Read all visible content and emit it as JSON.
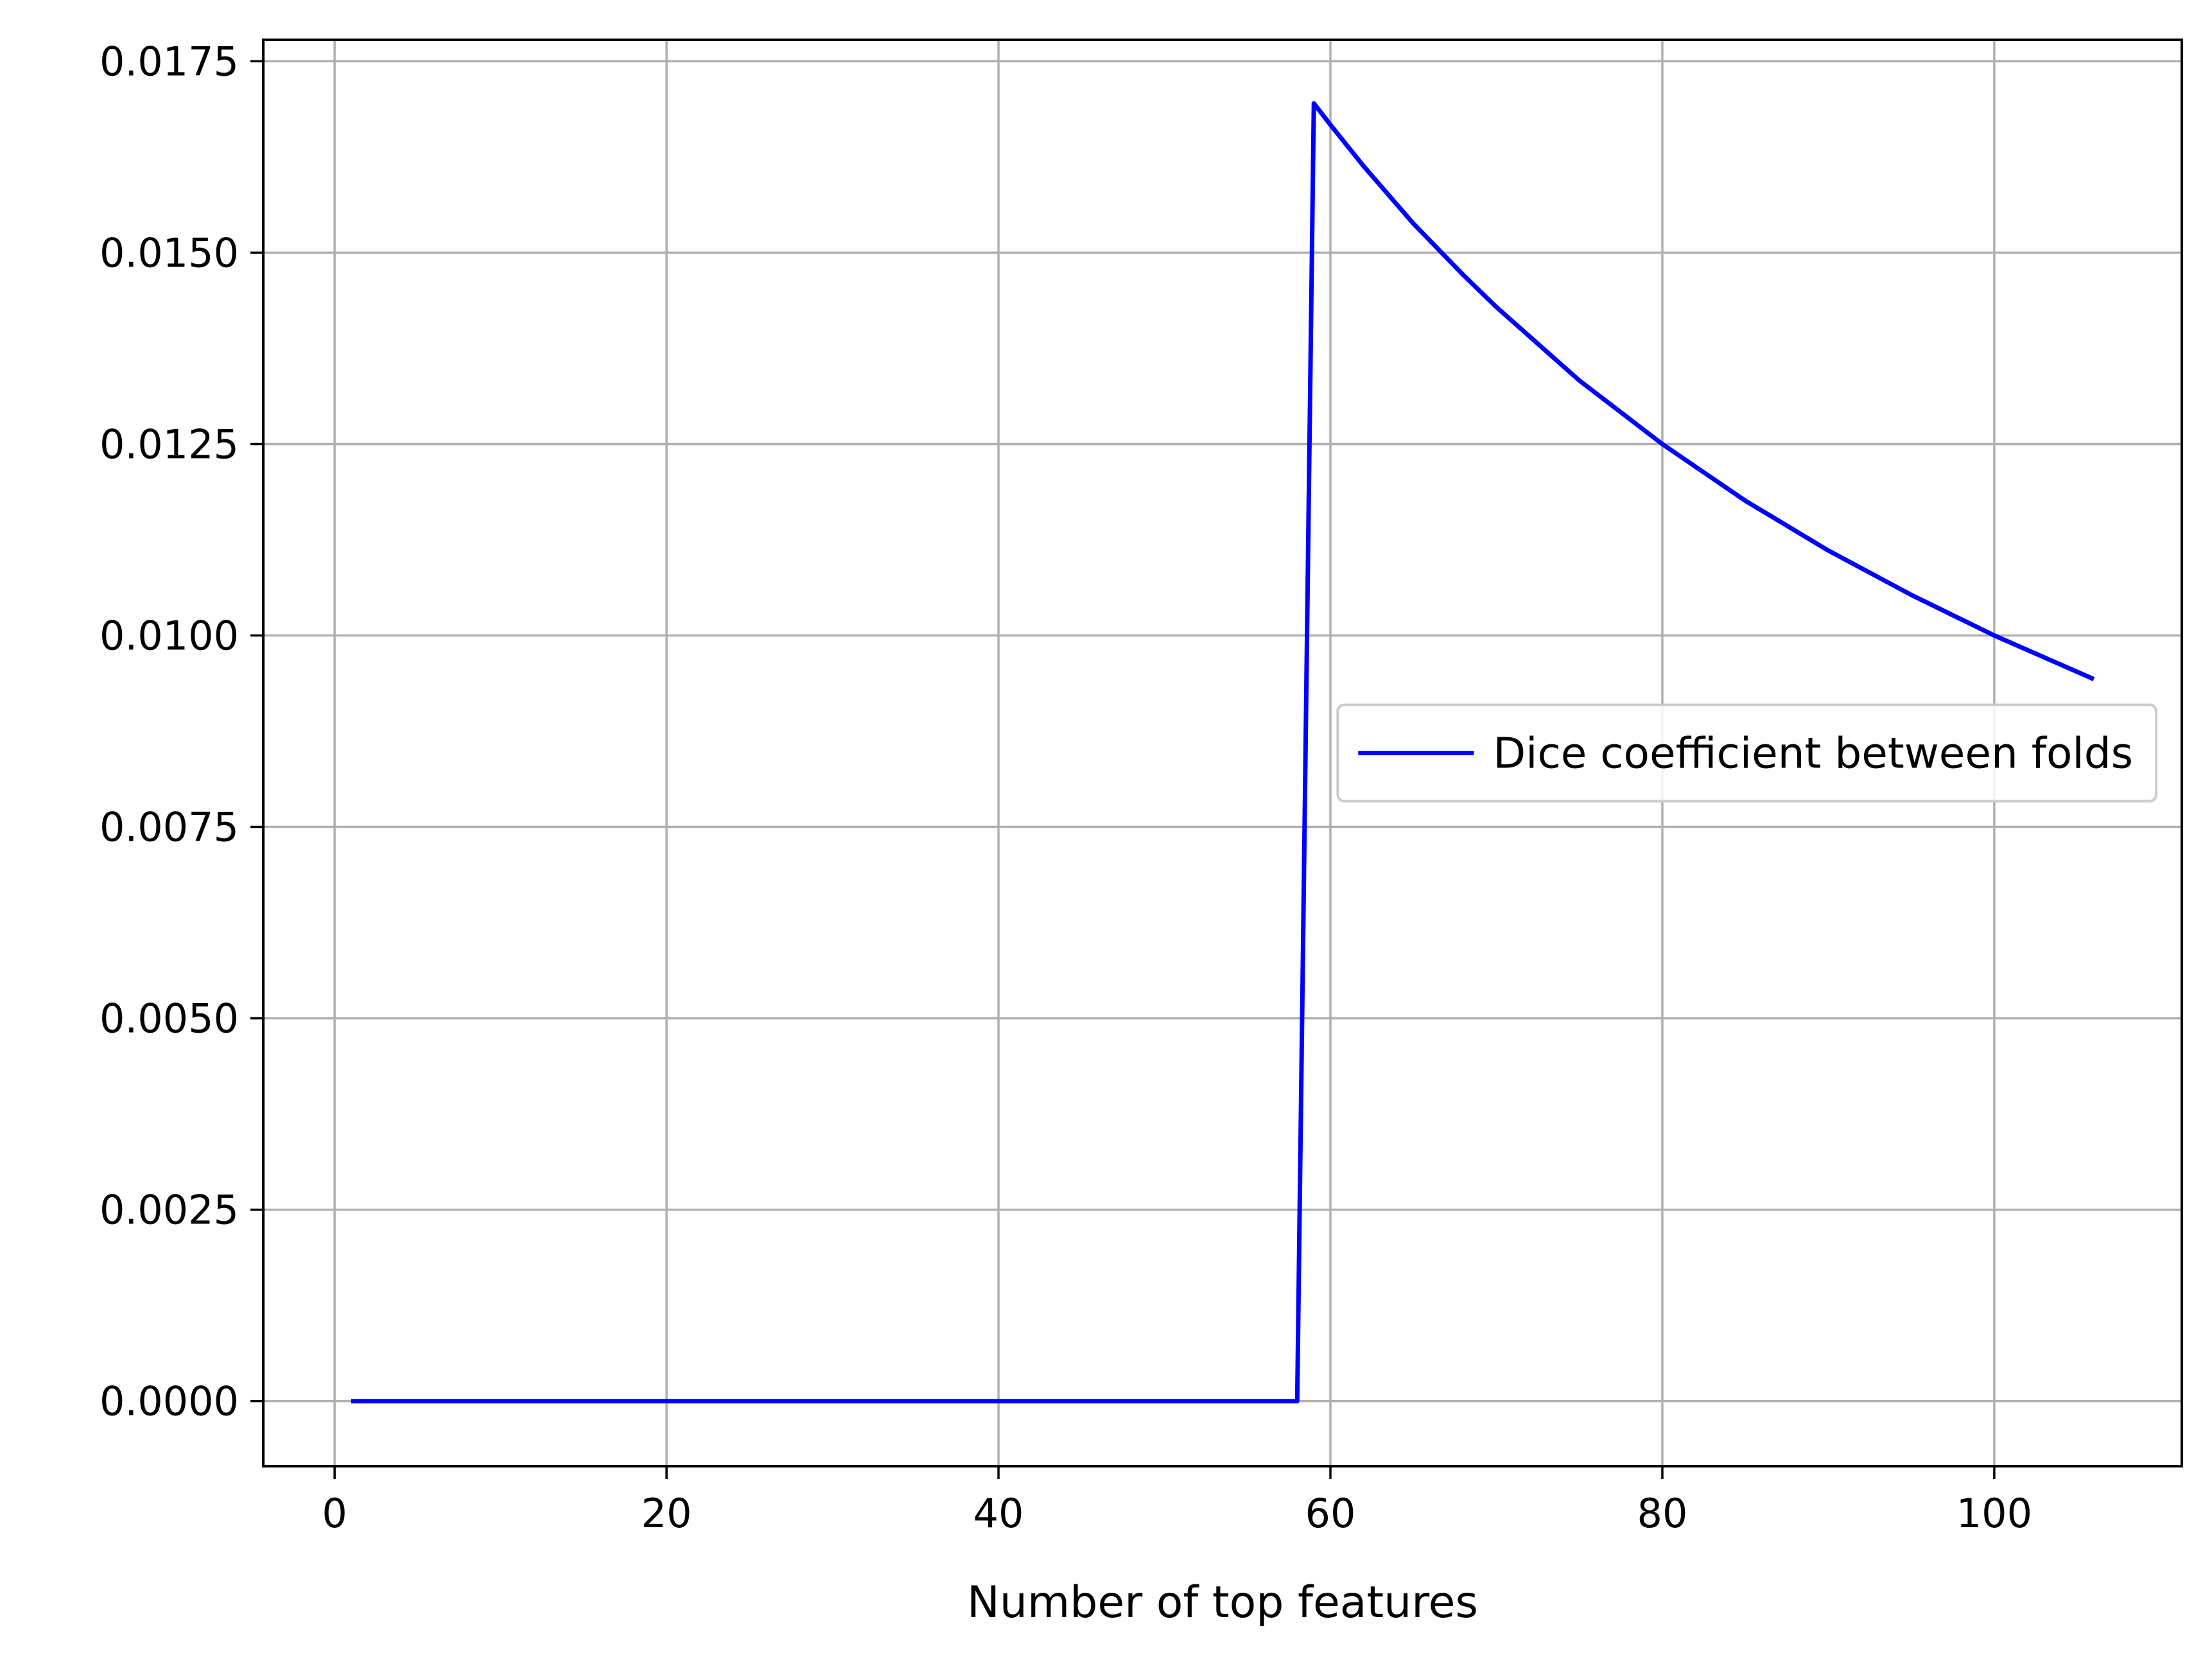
{
  "chart_data": {
    "type": "line",
    "title": "",
    "xlabel": "Number of top features",
    "ylabel": "",
    "xlim": [
      -4.3,
      111.3
    ],
    "ylim": [
      -0.00085,
      0.01778
    ],
    "xticks": [
      0,
      20,
      40,
      60,
      80,
      100
    ],
    "xtick_labels": [
      "0",
      "20",
      "40",
      "60",
      "80",
      "100"
    ],
    "yticks": [
      0,
      0.0025,
      0.005,
      0.0075,
      0.01,
      0.0125,
      0.015,
      0.0175
    ],
    "ytick_labels": [
      "0.0000",
      "0.0025",
      "0.0050",
      "0.0075",
      "0.0100",
      "0.0125",
      "0.0150",
      "0.0175"
    ],
    "grid": true,
    "legend_position": "center-right",
    "series": [
      {
        "name": "Dice coefficient between folds",
        "color": "#0000ff",
        "x": [
          1,
          58,
          59,
          60,
          62,
          65,
          68,
          70,
          75,
          80,
          85,
          90,
          95,
          100,
          106
        ],
        "y": [
          0,
          0,
          0.01695,
          0.01667,
          0.01613,
          0.01538,
          0.01471,
          0.01429,
          0.01333,
          0.0125,
          0.01176,
          0.01111,
          0.01053,
          0.01,
          0.00943
        ]
      }
    ]
  }
}
